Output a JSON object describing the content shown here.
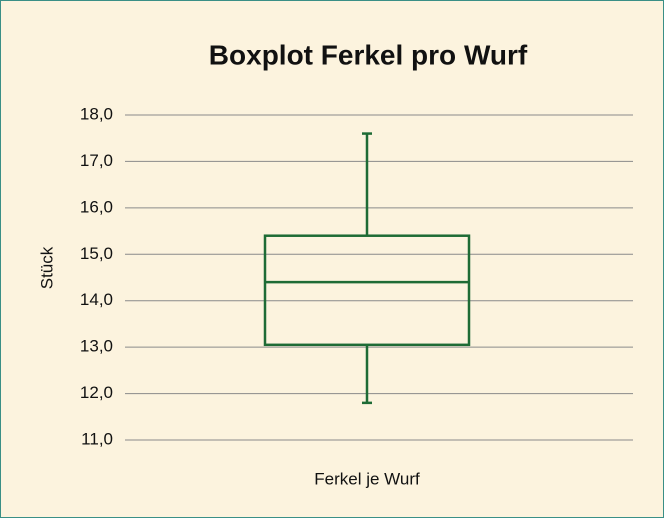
{
  "chart_data": {
    "type": "box",
    "title": "Boxplot Ferkel pro Wurf",
    "ylabel": "Stück",
    "categories": [
      "Ferkel je Wurf"
    ],
    "boxes": [
      {
        "min": 11.8,
        "q1": 13.05,
        "median": 14.4,
        "q3": 15.4,
        "max": 17.6
      }
    ],
    "color": "#1e6b35",
    "ylim": [
      11,
      18
    ],
    "yticks": [
      {
        "value": 11,
        "label": "11,0"
      },
      {
        "value": 12,
        "label": "12,0"
      },
      {
        "value": 13,
        "label": "13,0"
      },
      {
        "value": 14,
        "label": "14,0"
      },
      {
        "value": 15,
        "label": "15,0"
      },
      {
        "value": 16,
        "label": "16,0"
      },
      {
        "value": 17,
        "label": "17,0"
      },
      {
        "value": 18,
        "label": "18,0"
      }
    ],
    "grid": true
  }
}
